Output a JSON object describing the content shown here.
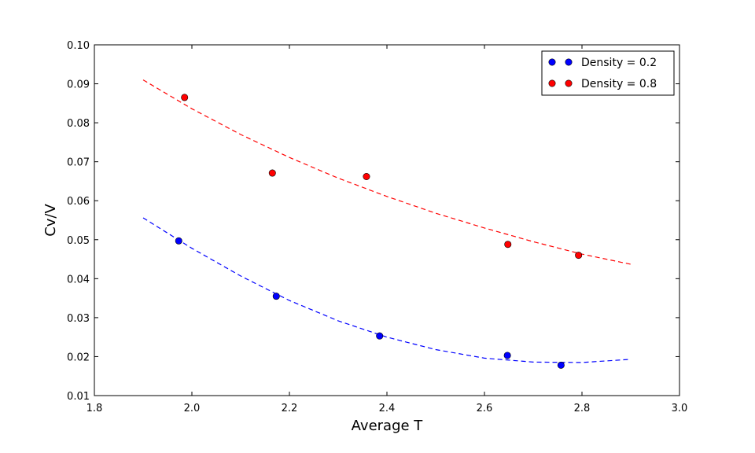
{
  "chart_data": {
    "type": "scatter",
    "xlabel": "Average T",
    "ylabel": "Cv/V",
    "xlim": [
      1.8,
      3.0
    ],
    "ylim": [
      0.01,
      0.1
    ],
    "x_ticks": [
      "1.8",
      "2.0",
      "2.2",
      "2.4",
      "2.6",
      "2.8",
      "3.0"
    ],
    "y_ticks": [
      "0.01",
      "0.02",
      "0.03",
      "0.04",
      "0.05",
      "0.06",
      "0.07",
      "0.08",
      "0.09",
      "0.10"
    ],
    "legend_position": "top-right",
    "series": [
      {
        "name": "Density = 0.2",
        "color": "#0000ff",
        "points": [
          {
            "x": 1.973,
            "y": 0.0497
          },
          {
            "x": 2.173,
            "y": 0.0355
          },
          {
            "x": 2.385,
            "y": 0.0253
          },
          {
            "x": 2.647,
            "y": 0.0203
          },
          {
            "x": 2.757,
            "y": 0.0178
          }
        ],
        "fit": {
          "style": "dashed",
          "points": [
            {
              "x": 1.9,
              "y": 0.0556
            },
            {
              "x": 2.0,
              "y": 0.0478
            },
            {
              "x": 2.1,
              "y": 0.0407
            },
            {
              "x": 2.2,
              "y": 0.0344
            },
            {
              "x": 2.3,
              "y": 0.0292
            },
            {
              "x": 2.4,
              "y": 0.025
            },
            {
              "x": 2.5,
              "y": 0.0218
            },
            {
              "x": 2.6,
              "y": 0.0196
            },
            {
              "x": 2.7,
              "y": 0.0186
            },
            {
              "x": 2.8,
              "y": 0.0185
            },
            {
              "x": 2.9,
              "y": 0.0193
            }
          ]
        }
      },
      {
        "name": "Density = 0.8",
        "color": "#ff0000",
        "points": [
          {
            "x": 1.985,
            "y": 0.0865
          },
          {
            "x": 2.165,
            "y": 0.0671
          },
          {
            "x": 2.358,
            "y": 0.0662
          },
          {
            "x": 2.648,
            "y": 0.0488
          },
          {
            "x": 2.793,
            "y": 0.046
          }
        ],
        "fit": {
          "style": "dashed",
          "points": [
            {
              "x": 1.9,
              "y": 0.091
            },
            {
              "x": 2.0,
              "y": 0.0836
            },
            {
              "x": 2.1,
              "y": 0.077
            },
            {
              "x": 2.2,
              "y": 0.0711
            },
            {
              "x": 2.3,
              "y": 0.0658
            },
            {
              "x": 2.4,
              "y": 0.0611
            },
            {
              "x": 2.5,
              "y": 0.0568
            },
            {
              "x": 2.6,
              "y": 0.053
            },
            {
              "x": 2.7,
              "y": 0.0495
            },
            {
              "x": 2.8,
              "y": 0.0463
            },
            {
              "x": 2.9,
              "y": 0.0437
            }
          ]
        }
      }
    ]
  }
}
